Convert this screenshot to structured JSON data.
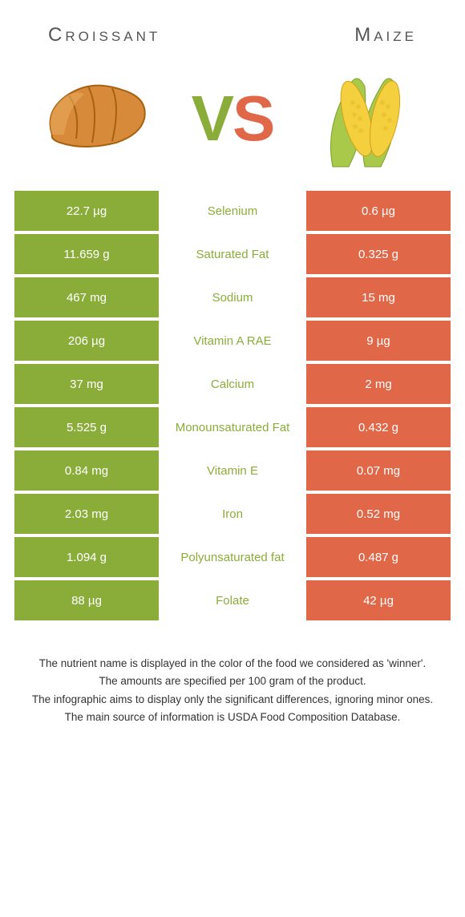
{
  "colors": {
    "left": "#8aad3a",
    "right": "#e06748",
    "left_text": "#8aad3a",
    "right_text": "#e06748"
  },
  "foods": {
    "left": "Croissant",
    "right": "Maize"
  },
  "vs": {
    "v": "V",
    "s": "S"
  },
  "rows": [
    {
      "left": "22.7 µg",
      "label": "Selenium",
      "right": "0.6 µg",
      "winner": "left"
    },
    {
      "left": "11.659 g",
      "label": "Saturated Fat",
      "right": "0.325 g",
      "winner": "left"
    },
    {
      "left": "467 mg",
      "label": "Sodium",
      "right": "15 mg",
      "winner": "left"
    },
    {
      "left": "206 µg",
      "label": "Vitamin A RAE",
      "right": "9 µg",
      "winner": "left"
    },
    {
      "left": "37 mg",
      "label": "Calcium",
      "right": "2 mg",
      "winner": "left"
    },
    {
      "left": "5.525 g",
      "label": "Monounsaturated Fat",
      "right": "0.432 g",
      "winner": "left"
    },
    {
      "left": "0.84 mg",
      "label": "Vitamin E",
      "right": "0.07 mg",
      "winner": "left"
    },
    {
      "left": "2.03 mg",
      "label": "Iron",
      "right": "0.52 mg",
      "winner": "left"
    },
    {
      "left": "1.094 g",
      "label": "Polyunsaturated fat",
      "right": "0.487 g",
      "winner": "left"
    },
    {
      "left": "88 µg",
      "label": "Folate",
      "right": "42 µg",
      "winner": "left"
    }
  ],
  "footnotes": [
    "The nutrient name is displayed in the color of the food we considered as 'winner'.",
    "The amounts are specified per 100 gram of the product.",
    "The infographic aims to display only the significant differences, ignoring minor ones.",
    "The main source of information is USDA Food Composition Database."
  ]
}
